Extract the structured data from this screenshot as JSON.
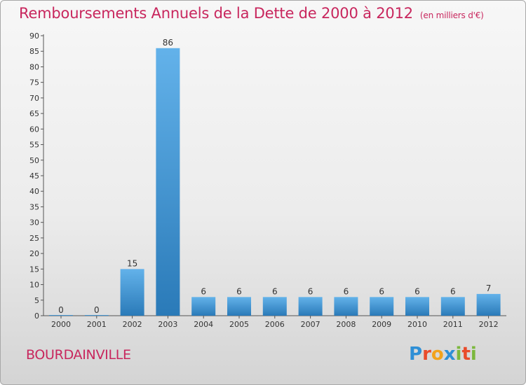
{
  "header": {
    "title": "Remboursements Annuels de la Dette de 2000 à 2012",
    "unit": "(en milliers d'€)"
  },
  "footer": {
    "town": "BOURDAINVILLE"
  },
  "logo": {
    "text": "Proxiti",
    "letters": [
      {
        "ch": "P",
        "color": "#2e8fd6"
      },
      {
        "ch": "r",
        "color": "#e94b2b"
      },
      {
        "ch": "o",
        "color": "#f2a21c"
      },
      {
        "ch": "x",
        "color": "#2e8fd6"
      },
      {
        "ch": "i",
        "color": "#7cb83d"
      },
      {
        "ch": "t",
        "color": "#e94b2b"
      },
      {
        "ch": "i",
        "color": "#7cb83d"
      }
    ]
  },
  "colors": {
    "title": "#c8265d",
    "bar_top": "#63b2ea",
    "bar_bottom": "#2a7ab8"
  },
  "chart_data": {
    "type": "bar",
    "title": "Remboursements Annuels de la Dette de 2000 à 2012",
    "subtitle": "(en milliers d'€)",
    "xlabel": "",
    "ylabel": "",
    "categories": [
      "2000",
      "2001",
      "2002",
      "2003",
      "2004",
      "2005",
      "2006",
      "2007",
      "2008",
      "2009",
      "2010",
      "2011",
      "2012"
    ],
    "values": [
      0,
      0,
      15,
      86,
      6,
      6,
      6,
      6,
      6,
      6,
      6,
      6,
      7
    ],
    "ylim": [
      0,
      90
    ],
    "yticks": [
      0,
      5,
      10,
      15,
      20,
      25,
      30,
      35,
      40,
      45,
      50,
      55,
      60,
      65,
      70,
      75,
      80,
      85,
      90
    ],
    "grid": false,
    "legend": "none"
  }
}
